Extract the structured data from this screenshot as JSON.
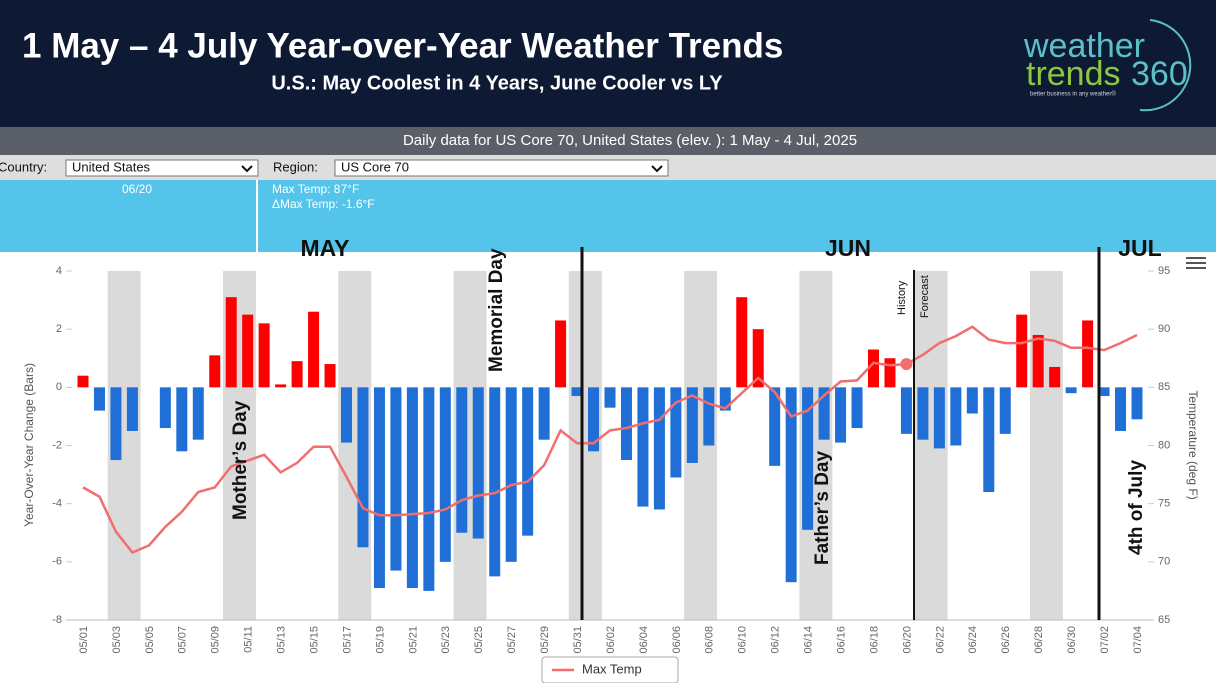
{
  "header": {
    "title": "1 May – 4 July Year-over-Year Weather Trends",
    "subtitle": "U.S.: May Coolest in 4 Years, June Cooler vs LY",
    "logo": {
      "word1": "weather",
      "word2": "trends",
      "word3": "360",
      "tagline": "better business in any weather®"
    }
  },
  "toolbar": {
    "caption": "Daily data for US Core 70, United States (elev. ): 1 May - 4 Jul, 2025",
    "country_label": "Country:",
    "country": "United States",
    "region_label": "Region:",
    "region": "US Core 70"
  },
  "tooltip": {
    "date": "06/20",
    "lines": [
      "Max Temp: 87°F",
      "ΔMax Temp: -1.6°F"
    ]
  },
  "chart_data": {
    "type": "combo",
    "categories": [
      "05/01",
      null,
      "05/03",
      null,
      "05/05",
      null,
      "05/07",
      null,
      "05/09",
      null,
      "05/11",
      null,
      "05/13",
      null,
      "05/15",
      null,
      "05/17",
      null,
      "05/19",
      null,
      "05/21",
      null,
      "05/23",
      null,
      "05/25",
      null,
      "05/27",
      null,
      "05/29",
      null,
      "05/31",
      null,
      "06/02",
      null,
      "06/04",
      null,
      "06/06",
      null,
      "06/08",
      null,
      "06/10",
      null,
      "06/12",
      null,
      "06/14",
      null,
      "06/16",
      null,
      "06/18",
      null,
      "06/20",
      null,
      "06/22",
      null,
      "06/24",
      null,
      "06/26",
      null,
      "06/28",
      null,
      "06/30",
      null,
      "07/02",
      null,
      "07/04"
    ],
    "series": [
      {
        "type": "bar",
        "positive_color": "#ff0000",
        "negative_color": "#1f6fd6",
        "values": [
          0.4,
          -0.8,
          -2.5,
          -1.5,
          0,
          -1.4,
          -2.2,
          -1.8,
          1.1,
          3.1,
          2.5,
          2.2,
          0.1,
          0.9,
          2.6,
          0.8,
          -1.9,
          -5.5,
          -6.9,
          -6.3,
          -6.9,
          -7.0,
          -6.0,
          -5.0,
          -5.2,
          -6.5,
          -6.0,
          -5.1,
          -1.8,
          2.3,
          -0.3,
          -2.2,
          -0.7,
          -2.5,
          -4.1,
          -4.2,
          -3.1,
          -2.6,
          -2.0,
          -0.8,
          3.1,
          2.0,
          -2.7,
          -6.7,
          -4.9,
          -1.8,
          -1.9,
          -1.4,
          1.3,
          1.0,
          -1.6,
          -1.8,
          -2.1,
          -2.0,
          -0.9,
          -3.6,
          -1.6,
          2.5,
          1.8,
          0.7,
          -0.2,
          2.3,
          -0.3,
          -1.5,
          -1.1
        ]
      },
      {
        "type": "line",
        "name": "Max Temp",
        "color": "#f26d6d",
        "axis": "y2",
        "values": [
          76.4,
          75.6,
          72.6,
          70.8,
          71.4,
          73.0,
          74.3,
          76.0,
          76.4,
          78.2,
          78.7,
          79.2,
          77.7,
          78.5,
          79.9,
          79.9,
          77.3,
          74.6,
          74.0,
          74.0,
          74.1,
          74.2,
          74.5,
          75.3,
          75.7,
          75.9,
          76.6,
          76.9,
          78.3,
          81.3,
          80.2,
          80.2,
          81.3,
          81.5,
          81.9,
          82.2,
          83.7,
          84.3,
          83.6,
          83.2,
          84.5,
          85.8,
          84.6,
          82.5,
          83.0,
          84.3,
          85.5,
          85.6,
          87.1,
          86.9,
          87.0,
          87.8,
          88.8,
          89.4,
          90.2,
          89.1,
          88.8,
          88.8,
          89.2,
          89.0,
          88.4,
          88.4,
          88.2,
          88.8,
          89.5
        ]
      }
    ],
    "ylabel": "Year-Over-Year Change (Bars)",
    "y2label": "Temperature (deg F)",
    "ylim": [
      -8,
      4
    ],
    "yticks": [
      -8,
      -6,
      -4,
      -2,
      0,
      2,
      4
    ],
    "y2lim": [
      65,
      95
    ],
    "y2ticks": [
      65,
      70,
      75,
      80,
      85,
      90,
      95
    ],
    "months": [
      "MAY",
      "JUN",
      "JUL"
    ],
    "annotations": [
      "Mother’s Day",
      "Memorial Day",
      "Father’s  Day",
      "4th of July",
      "History",
      "Forecast"
    ],
    "legend": "bottom"
  }
}
